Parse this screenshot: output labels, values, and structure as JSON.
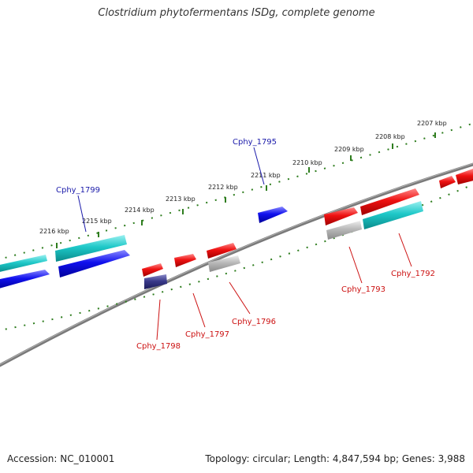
{
  "title": "Clostridium phytofermentans ISDg, complete genome",
  "footer": {
    "accession": "Accession: NC_010001",
    "summary": "Topology: circular; Length: 4,847,594 bp; Genes: 3,988"
  },
  "scale": {
    "unit": "kbp",
    "labels": [
      "2207 kbp",
      "2208 kbp",
      "2209 kbp",
      "2210 kbp",
      "2211 kbp",
      "2212 kbp",
      "2213 kbp",
      "2214 kbp",
      "2215 kbp",
      "2216 kbp"
    ]
  },
  "colors": {
    "backbone": "#7a7a7a",
    "tick": "#2e7d1e",
    "forward_label": "#1a1aaa",
    "reverse_label": "#cc1111",
    "red": "#ee1111",
    "blue": "#1111ee",
    "cyan": "#1ec8c8",
    "gray": "#b8b8b8",
    "purple": "#3a3a8a"
  },
  "gene_labels": [
    {
      "text": "Cphy_1795",
      "strand": "forward"
    },
    {
      "text": "Cphy_1799",
      "strand": "forward"
    },
    {
      "text": "Cphy_1792",
      "strand": "reverse"
    },
    {
      "text": "Cphy_1793",
      "strand": "reverse"
    },
    {
      "text": "Cphy_1796",
      "strand": "reverse"
    },
    {
      "text": "Cphy_1797",
      "strand": "reverse"
    },
    {
      "text": "Cphy_1798",
      "strand": "reverse"
    }
  ]
}
